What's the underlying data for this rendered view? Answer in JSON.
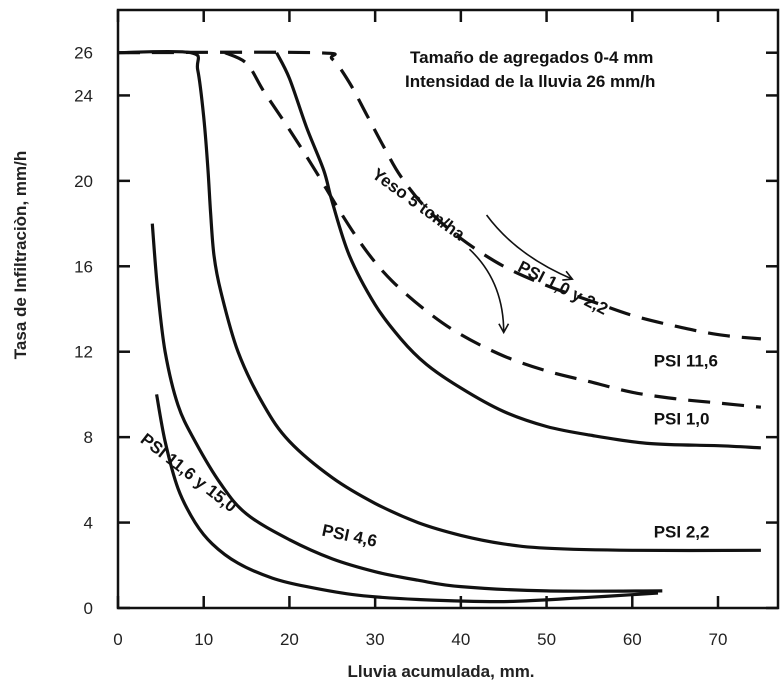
{
  "chart_data": {
    "type": "line",
    "title_lines": [
      "Tamaño de agregados 0-4 mm",
      "Intensidad de la lluvia 26 mm/h"
    ],
    "xlabel": "Lluvia acumulada, mm.",
    "ylabel": "Tasa de Infiltraciòn, mm/h",
    "xlim": [
      0,
      77
    ],
    "ylim": [
      0,
      28
    ],
    "xticks": [
      0,
      10,
      20,
      30,
      40,
      50,
      60,
      70
    ],
    "yticks": [
      0,
      4,
      8,
      12,
      16,
      20,
      24,
      26
    ],
    "grid": false,
    "series": [
      {
        "style": "solid",
        "points": [
          [
            0,
            26
          ],
          [
            8.5,
            26
          ],
          [
            9.3,
            25.2
          ],
          [
            10,
            23
          ],
          [
            10.5,
            20.5
          ],
          [
            10.8,
            18.5
          ],
          [
            11.2,
            16.5
          ],
          [
            12,
            14.8
          ],
          [
            14,
            12
          ],
          [
            17,
            9.5
          ],
          [
            20,
            7.8
          ],
          [
            25,
            6.1
          ],
          [
            30,
            4.9
          ],
          [
            35,
            4.0
          ],
          [
            40,
            3.4
          ],
          [
            45,
            3.0
          ],
          [
            50,
            2.8
          ],
          [
            60,
            2.7
          ],
          [
            75,
            2.7
          ]
        ]
      },
      {
        "style": "solid",
        "points": [
          [
            18.5,
            26
          ],
          [
            20,
            24.8
          ],
          [
            22,
            22.5
          ],
          [
            24,
            20.5
          ],
          [
            25,
            19
          ],
          [
            27,
            16.5
          ],
          [
            30,
            14.2
          ],
          [
            33,
            12.6
          ],
          [
            36,
            11.4
          ],
          [
            40,
            10.3
          ],
          [
            45,
            9.2
          ],
          [
            50,
            8.5
          ],
          [
            55,
            8.1
          ],
          [
            62,
            7.7
          ],
          [
            70,
            7.6
          ],
          [
            75,
            7.5
          ]
        ]
      },
      {
        "style": "solid",
        "points": [
          [
            4,
            18
          ],
          [
            4.6,
            15
          ],
          [
            5.5,
            12
          ],
          [
            7,
            9.5
          ],
          [
            9,
            7.8
          ],
          [
            12,
            5.8
          ],
          [
            15,
            4.4
          ],
          [
            20,
            3.2
          ],
          [
            25,
            2.3
          ],
          [
            30,
            1.7
          ],
          [
            35,
            1.3
          ],
          [
            40,
            1.0
          ],
          [
            50,
            0.8
          ],
          [
            63.5,
            0.8
          ]
        ]
      },
      {
        "style": "solid",
        "points": [
          [
            4.5,
            10
          ],
          [
            5.5,
            7.8
          ],
          [
            7,
            5.6
          ],
          [
            9,
            4.0
          ],
          [
            11,
            3.0
          ],
          [
            14,
            2.1
          ],
          [
            18,
            1.4
          ],
          [
            22,
            1.0
          ],
          [
            28,
            0.6
          ],
          [
            35,
            0.4
          ],
          [
            45,
            0.3
          ],
          [
            55,
            0.5
          ],
          [
            63,
            0.7
          ]
        ]
      },
      {
        "style": "dashed",
        "points": [
          [
            0,
            26
          ],
          [
            23,
            26
          ],
          [
            25,
            25.7
          ],
          [
            27,
            24.6
          ],
          [
            29,
            23.1
          ],
          [
            31,
            21.6
          ],
          [
            33,
            20.2
          ],
          [
            36,
            18.7
          ],
          [
            40,
            17.3
          ],
          [
            45,
            16.0
          ],
          [
            50,
            15.1
          ],
          [
            55,
            14.4
          ],
          [
            60,
            13.7
          ],
          [
            65,
            13.2
          ],
          [
            70,
            12.8
          ],
          [
            75,
            12.6
          ]
        ]
      },
      {
        "style": "dashed",
        "points": [
          [
            12.5,
            26
          ],
          [
            15,
            25.5
          ],
          [
            17,
            24.2
          ],
          [
            20,
            22.4
          ],
          [
            23,
            20.5
          ],
          [
            26,
            18.5
          ],
          [
            29,
            16.7
          ],
          [
            32,
            15.3
          ],
          [
            36,
            13.9
          ],
          [
            40,
            12.8
          ],
          [
            45,
            11.8
          ],
          [
            50,
            11.1
          ],
          [
            55,
            10.6
          ],
          [
            60,
            10.1
          ],
          [
            65,
            9.8
          ],
          [
            70,
            9.6
          ],
          [
            75,
            9.4
          ]
        ]
      }
    ],
    "annotations": [
      {
        "text": "PSI 1,0 y 2,2",
        "at": [
          46.5,
          15.8
        ],
        "angle": 27
      },
      {
        "text": "Yeso 5 ton/ha",
        "at": [
          29.5,
          20.2
        ],
        "angle": 36
      },
      {
        "text": "PSI 11,6",
        "at": [
          62.5,
          11.3
        ],
        "angle": 0
      },
      {
        "text": "PSI 1,0",
        "at": [
          62.5,
          8.6
        ],
        "angle": 0
      },
      {
        "text": "PSI 2,2",
        "at": [
          62.5,
          3.3
        ],
        "angle": 0
      },
      {
        "text": "PSI 4,6",
        "at": [
          23.7,
          3.4
        ],
        "angle": 12
      },
      {
        "text": "PSI 11,6 y 15,0",
        "at": [
          2.5,
          7.8
        ],
        "angle": 38
      }
    ],
    "arrows": [
      {
        "path": [
          [
            43,
            18.4
          ],
          [
            46.5,
            16.5
          ],
          [
            53,
            15.4
          ]
        ]
      },
      {
        "path": [
          [
            41,
            16.8
          ],
          [
            45,
            15.3
          ],
          [
            45,
            12.9
          ]
        ]
      }
    ]
  }
}
